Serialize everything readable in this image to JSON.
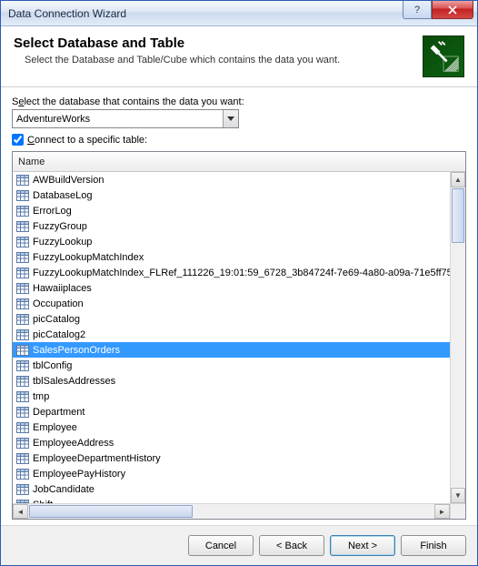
{
  "window": {
    "title": "Data Connection Wizard"
  },
  "header": {
    "heading": "Select Database and Table",
    "sub": "Select the Database and Table/Cube which contains the data you want."
  },
  "body": {
    "db_label_pre": "S",
    "db_label_u": "e",
    "db_label_post": "lect the database that contains the data you want:",
    "database": "AdventureWorks",
    "connect_label_u": "C",
    "connect_label_post": "onnect to a specific table:",
    "column_header": "Name",
    "selected_index": 10,
    "tables": [
      "AWBuildVersion",
      "DatabaseLog",
      "ErrorLog",
      "FuzzyGroup",
      "FuzzyLookup",
      "FuzzyLookupMatchIndex",
      "FuzzyLookupMatchIndex_FLRef_111226_19:01:59_6728_3b84724f-7e69-4a80-a09a-71e5ff75",
      "Hawaiiplaces",
      "Occupation",
      "picCatalog",
      "picCatalog2",
      "SalesPersonOrders",
      "tblConfig",
      "tblSalesAddresses",
      "tmp",
      "Department",
      "Employee",
      "EmployeeAddress",
      "EmployeeDepartmentHistory",
      "EmployeePayHistory",
      "JobCandidate",
      "Shift"
    ]
  },
  "footer": {
    "cancel": "Cancel",
    "back": "< Back",
    "next": "Next >",
    "finish": "Finish"
  },
  "colors": {
    "selection": "#3399ff",
    "border": "#828790"
  }
}
